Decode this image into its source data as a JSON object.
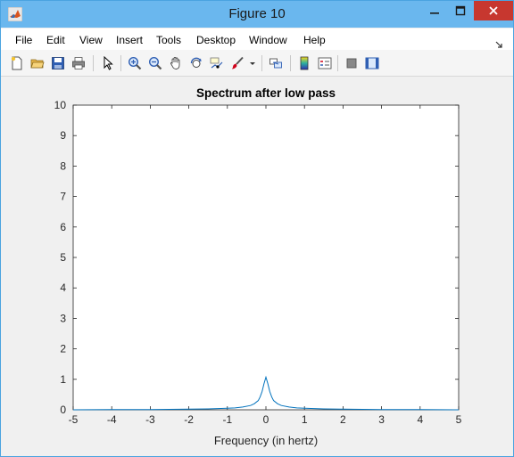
{
  "window": {
    "title": "Figure 10"
  },
  "menu": {
    "items": [
      "File",
      "Edit",
      "View",
      "Insert",
      "Tools",
      "Desktop",
      "Window",
      "Help"
    ]
  },
  "toolbar": {
    "icons": [
      "new-figure-icon",
      "open-file-icon",
      "save-icon",
      "print-icon",
      "pointer-icon",
      "zoom-in-icon",
      "zoom-out-icon",
      "pan-hand-icon",
      "rotate-3d-icon",
      "data-cursor-icon",
      "brush-icon",
      "link-plot-icon",
      "colorbar-icon",
      "legend-icon",
      "hide-plot-tools-icon",
      "show-plot-tools-icon"
    ]
  },
  "colors": {
    "titlebar": "#6ab7ee",
    "close_button": "#c7372f",
    "series": "#0072bd"
  },
  "chart_data": {
    "type": "line",
    "title": "Spectrum after low pass",
    "xlabel": "Frequency (in hertz)",
    "ylabel": "",
    "xlim": [
      -5,
      5
    ],
    "ylim": [
      0,
      10
    ],
    "xticks": [
      "-5",
      "-4",
      "-3",
      "-2",
      "-1",
      "0",
      "1",
      "2",
      "3",
      "4",
      "5"
    ],
    "yticks": [
      "0",
      "1",
      "2",
      "3",
      "4",
      "5",
      "6",
      "7",
      "8",
      "9",
      "10"
    ],
    "grid": false,
    "series": [
      {
        "x": [
          -5,
          -4,
          -3,
          -2,
          -1.5,
          -1,
          -0.8,
          -0.6,
          -0.4,
          -0.3,
          -0.2,
          -0.15,
          -0.1,
          -0.05,
          0,
          0.05,
          0.1,
          0.15,
          0.2,
          0.3,
          0.4,
          0.6,
          0.8,
          1,
          1.5,
          2,
          3,
          4,
          5
        ],
        "y": [
          0.0,
          0.005,
          0.01,
          0.02,
          0.03,
          0.05,
          0.06,
          0.09,
          0.14,
          0.2,
          0.3,
          0.42,
          0.6,
          0.85,
          1.07,
          0.85,
          0.6,
          0.42,
          0.3,
          0.2,
          0.14,
          0.09,
          0.06,
          0.05,
          0.03,
          0.02,
          0.01,
          0.005,
          0.0
        ]
      }
    ]
  }
}
